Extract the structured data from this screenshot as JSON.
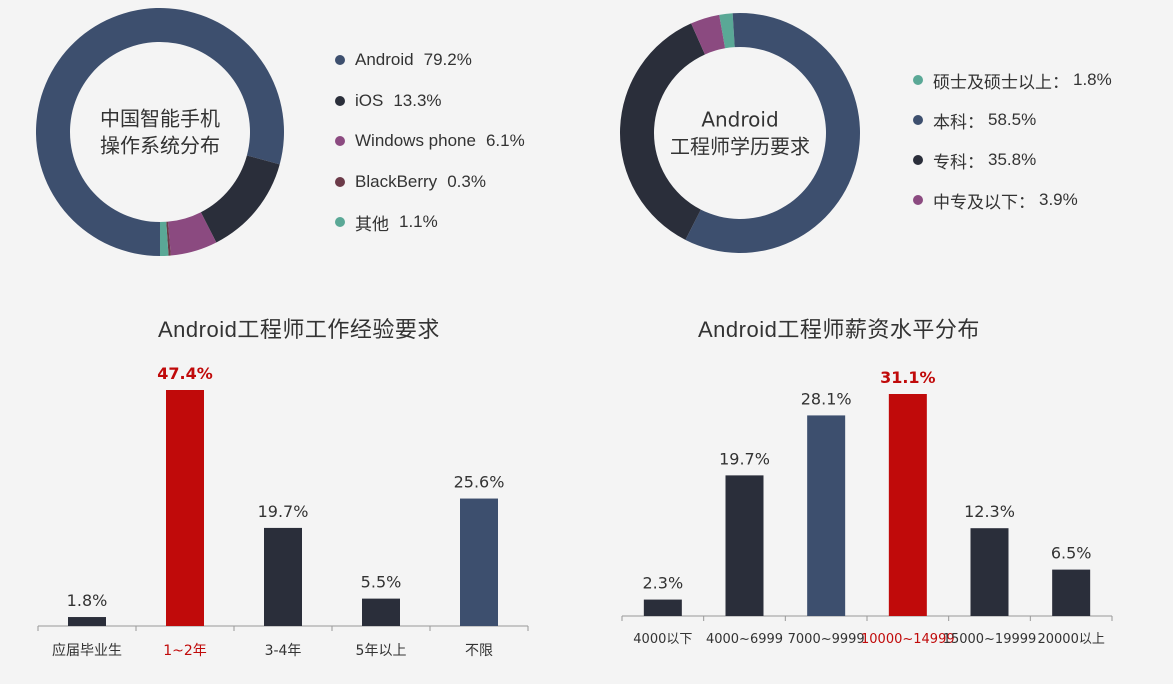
{
  "colors": {
    "navy": "#3d4f6e",
    "dark": "#2a2e3a",
    "purple": "#8b4a80",
    "maroon": "#6b3a48",
    "teal": "#5aa896",
    "red": "#c00a0a",
    "axis": "#999999"
  },
  "chart_data": [
    {
      "type": "pie",
      "title": "中国智能手机\n操作系统分布",
      "slices": [
        {
          "label": "Android",
          "value": 79.2,
          "display": "79.2%",
          "color": "#3d4f6e"
        },
        {
          "label": "iOS",
          "value": 13.3,
          "display": "13.3%",
          "color": "#2a2e3a"
        },
        {
          "label": "Windows phone",
          "value": 6.1,
          "display": "6.1%",
          "color": "#8b4a80"
        },
        {
          "label": "BlackBerry",
          "value": 0.3,
          "display": "0.3%",
          "color": "#6b3a48"
        },
        {
          "label": "其他",
          "value": 1.1,
          "display": "1.1%",
          "color": "#5aa896"
        }
      ],
      "legend_position": "right"
    },
    {
      "type": "pie",
      "title": "Android\n工程师学历要求",
      "slices": [
        {
          "label": "硕士及硕士以上",
          "value": 1.8,
          "display": "1.8%",
          "color": "#5aa896"
        },
        {
          "label": "本科",
          "value": 58.5,
          "display": "58.5%",
          "color": "#3d4f6e"
        },
        {
          "label": "专科",
          "value": 35.8,
          "display": "35.8%",
          "color": "#2a2e3a"
        },
        {
          "label": "中专及以下",
          "value": 3.9,
          "display": "3.9%",
          "color": "#8b4a80"
        }
      ],
      "legend_position": "right"
    },
    {
      "type": "bar",
      "title": "Android工程师工作经验要求",
      "categories": [
        "应届毕业生",
        "1~2年",
        "3-4年",
        "5年以上",
        "不限"
      ],
      "values": [
        1.8,
        47.4,
        19.7,
        5.5,
        25.6
      ],
      "labels": [
        "1.8%",
        "47.4%",
        "19.7%",
        "5.5%",
        "25.6%"
      ],
      "colors": [
        "#2a2e3a",
        "#c00a0a",
        "#2a2e3a",
        "#2a2e3a",
        "#3d4f6e"
      ],
      "highlight_index": 1,
      "ylim": [
        0,
        50
      ]
    },
    {
      "type": "bar",
      "title": "Android工程师薪资水平分布",
      "categories": [
        "4000以下",
        "4000~6999",
        "7000~9999",
        "10000~14999",
        "15000~19999",
        "20000以上"
      ],
      "values": [
        2.3,
        19.7,
        28.1,
        31.1,
        12.3,
        6.5
      ],
      "labels": [
        "2.3%",
        "19.7%",
        "28.1%",
        "31.1%",
        "12.3%",
        "6.5%"
      ],
      "colors": [
        "#2a2e3a",
        "#2a2e3a",
        "#3d4f6e",
        "#c00a0a",
        "#2a2e3a",
        "#2a2e3a"
      ],
      "highlight_index": 3,
      "ylim": [
        0,
        32
      ]
    }
  ]
}
